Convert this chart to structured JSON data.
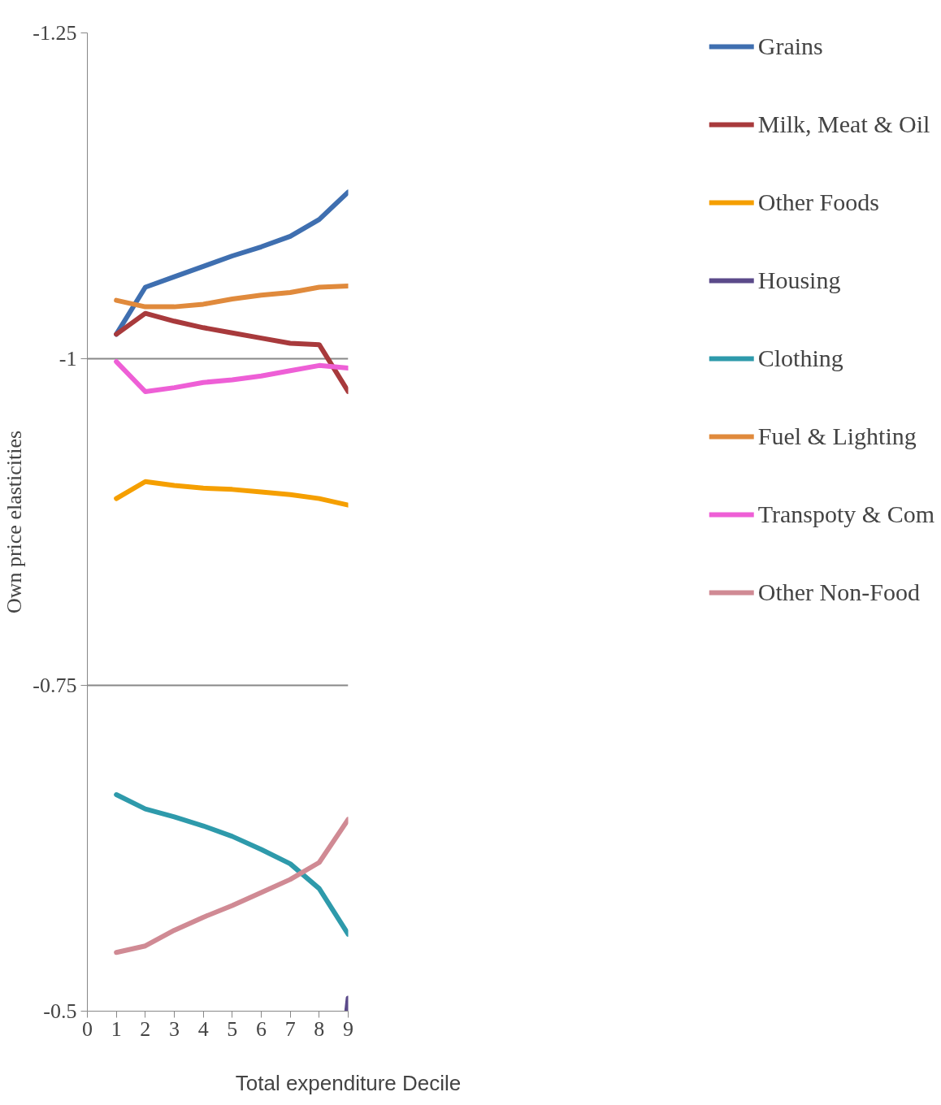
{
  "chart_data": {
    "type": "line",
    "ylabel": "Own price elasticities",
    "xlabel": "Total expenditure Decile",
    "x": [
      1,
      2,
      3,
      4,
      5,
      6,
      7,
      8,
      9
    ],
    "xlim": [
      0,
      9
    ],
    "xticks": [
      0,
      1,
      2,
      3,
      4,
      5,
      6,
      7,
      8,
      9
    ],
    "ylim": [
      -0.5,
      -1.25
    ],
    "yticks": [
      -1.25,
      -1,
      -0.75,
      -0.5
    ],
    "grid": "y",
    "legend": "right",
    "marker": "none",
    "line_style": "solid",
    "series": [
      {
        "name": "Grains",
        "color": "#3f6fb0",
        "values": [
          -1.019,
          -1.055,
          -1.063,
          -1.071,
          -1.079,
          -1.086,
          -1.094,
          -1.107,
          -1.128
        ]
      },
      {
        "name": "Milk, Meat & Oil",
        "color": "#a83a3c",
        "values": [
          -1.019,
          -1.035,
          -1.029,
          -1.024,
          -1.02,
          -1.016,
          -1.012,
          -1.011,
          -0.975
        ]
      },
      {
        "name": "Other Foods",
        "color": "#f59f00",
        "values": [
          -0.893,
          -0.906,
          -0.903,
          -0.901,
          -0.9,
          -0.898,
          -0.896,
          -0.893,
          -0.888
        ]
      },
      {
        "name": "Housing",
        "color": "#5b4a8a",
        "x": [
          8.95,
          9
        ],
        "values": [
          -0.5,
          -0.51
        ]
      },
      {
        "name": "Clothing",
        "color": "#2e9aab",
        "values": [
          -0.666,
          -0.655,
          -0.649,
          -0.642,
          -0.634,
          -0.624,
          -0.613,
          -0.594,
          -0.559
        ]
      },
      {
        "name": "Fuel & Lighting",
        "color": "#e08a3c",
        "values": [
          -1.045,
          -1.04,
          -1.04,
          -1.042,
          -1.046,
          -1.049,
          -1.051,
          -1.055,
          -1.056
        ]
      },
      {
        "name": "Transpoty & Com",
        "color": "#ee5fd6",
        "values": [
          -0.998,
          -0.975,
          -0.978,
          -0.982,
          -0.984,
          -0.987,
          -0.991,
          -0.995,
          -0.993
        ]
      },
      {
        "name": "Other Non-Food",
        "color": "#d08a94",
        "values": [
          -0.545,
          -0.55,
          -0.562,
          -0.572,
          -0.581,
          -0.591,
          -0.601,
          -0.614,
          -0.647
        ]
      }
    ]
  }
}
